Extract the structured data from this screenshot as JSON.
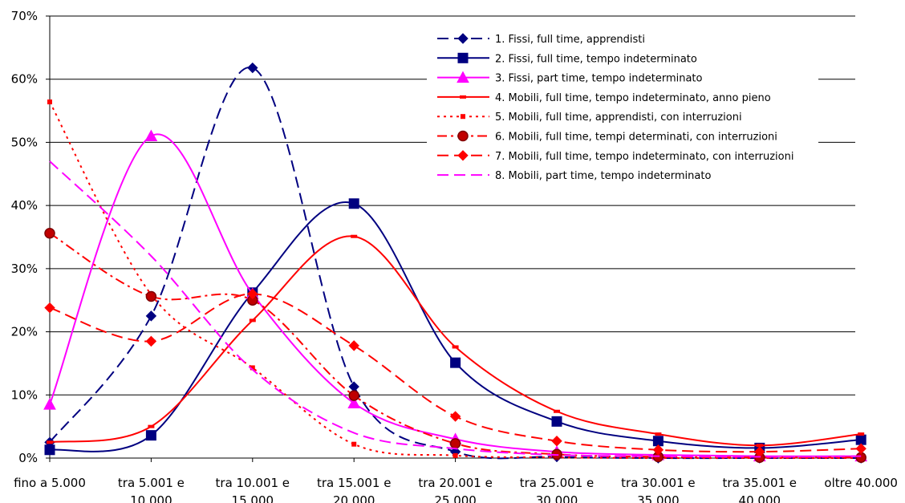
{
  "chart_data": {
    "type": "line",
    "title": "",
    "xlabel": "",
    "ylabel": "",
    "ylim": [
      0,
      70
    ],
    "y_ticks": [
      "0%",
      "10%",
      "20%",
      "30%",
      "40%",
      "50%",
      "60%",
      "70%"
    ],
    "grid": true,
    "legend_position": "top-right",
    "categories": [
      [
        "fino a 5.000"
      ],
      [
        "tra 5.001 e",
        "10.000"
      ],
      [
        "tra 10.001 e",
        "15.000"
      ],
      [
        "tra 15.001 e",
        "20.000"
      ],
      [
        "tra 20.001 e",
        "25.000"
      ],
      [
        "tra 25.001 e",
        "30.000"
      ],
      [
        "tra 30.001 e",
        "35.000"
      ],
      [
        "tra 35.001 e",
        "40.000"
      ],
      [
        "oltre 40.000"
      ]
    ],
    "series": [
      {
        "name": "1. Fissi, full time, apprendisti",
        "color": "#000080",
        "dash": "long-dash",
        "marker": "diamond",
        "values": [
          2.5,
          22.5,
          61.8,
          11.3,
          1.0,
          0.2,
          0.0,
          0.0,
          0.0
        ]
      },
      {
        "name": "2. Fissi, full time, tempo indeterminato",
        "color": "#000080",
        "dash": "solid",
        "marker": "square",
        "values": [
          1.3,
          3.6,
          26.2,
          40.3,
          15.1,
          5.8,
          2.7,
          1.6,
          2.9
        ]
      },
      {
        "name": "3. Fissi, part time, tempo indeterminato",
        "color": "#ff00ff",
        "dash": "solid",
        "marker": "triangle",
        "values": [
          8.5,
          51.0,
          26.0,
          8.7,
          3.0,
          1.0,
          0.5,
          0.3,
          0.3
        ]
      },
      {
        "name": "4. Mobili, full time, tempo indeterminato, anno pieno",
        "color": "#ff0000",
        "dash": "solid",
        "marker": "dash",
        "values": [
          2.5,
          5.0,
          21.8,
          35.1,
          17.6,
          7.4,
          3.8,
          2.0,
          3.8
        ]
      },
      {
        "name": "5. Mobili, full time, apprendisti, con interruzioni",
        "color": "#ff0000",
        "dash": "dot",
        "marker": "small-square",
        "values": [
          56.4,
          25.9,
          14.3,
          2.2,
          0.4,
          0.1,
          0.0,
          0.0,
          0.0
        ]
      },
      {
        "name": "6. Mobili, full time, tempi determinati, con interruzioni",
        "color": "#ff0000",
        "dash": "dash-dot",
        "marker": "circle",
        "values": [
          35.6,
          25.6,
          25.0,
          9.9,
          2.3,
          0.6,
          0.2,
          0.1,
          0.1
        ]
      },
      {
        "name": "7. Mobili, full time, tempo indeterminato, con interruzioni",
        "color": "#ff0000",
        "dash": "long-dash",
        "marker": "diamond",
        "values": [
          23.8,
          18.5,
          26.0,
          17.8,
          6.6,
          2.7,
          1.3,
          1.0,
          1.5
        ]
      },
      {
        "name": "8. Mobili, part time, tempo indeterminato",
        "color": "#ff00ff",
        "dash": "long-dash",
        "marker": "none",
        "values": [
          47.0,
          32.0,
          14.0,
          4.0,
          1.5,
          0.5,
          0.3,
          0.2,
          0.3
        ]
      }
    ]
  }
}
